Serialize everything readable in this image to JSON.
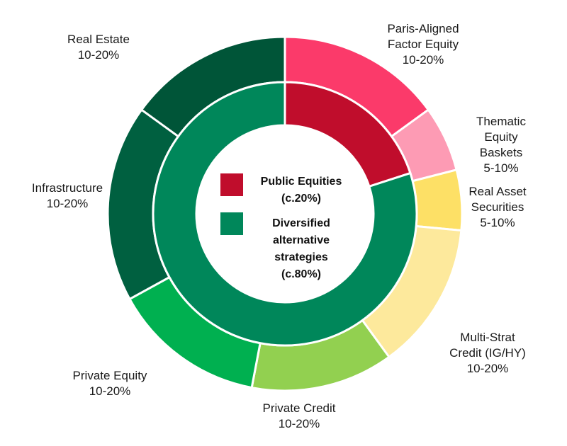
{
  "chart_data": {
    "type": "nested-donut",
    "inner": {
      "categories": [
        "Public Equities",
        "Diversified\nalternative\nstrategies"
      ],
      "values": [
        20,
        80
      ],
      "value_labels": [
        "(c.20%)",
        "(c.80%)"
      ],
      "colors": [
        "#c00d2c",
        "#00875a"
      ]
    },
    "outer": {
      "categories": [
        "Paris-Aligned\nFactor Equity",
        "Thematic\nEquity Baskets",
        "Real Asset\nSecurities",
        "Multi-Strat\nCredit (IG/HY)",
        "Private Credit",
        "Private Equity",
        "Infrastructure",
        "Real Estate"
      ],
      "values": [
        15,
        6,
        5.5,
        13.5,
        13,
        14,
        18,
        15
      ],
      "value_labels": [
        "10-20%",
        "5-10%",
        "5-10%",
        "10-20%",
        "10-20%",
        "10-20%",
        "10-20%",
        "10-20%"
      ],
      "colors": [
        "#fb3a6a",
        "#fd9bb4",
        "#fde066",
        "#fde99c",
        "#92d050",
        "#00b050",
        "#006040",
        "#005538"
      ]
    }
  }
}
